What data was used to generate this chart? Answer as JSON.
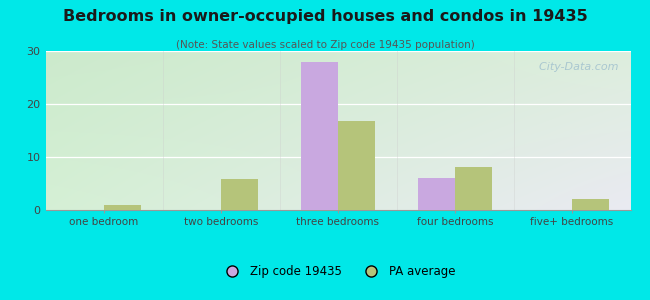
{
  "title": "Bedrooms in owner-occupied houses and condos in 19435",
  "subtitle": "(Note: State values scaled to Zip code 19435 population)",
  "categories": [
    "one bedroom",
    "two bedrooms",
    "three bedrooms",
    "four bedrooms",
    "five+ bedrooms"
  ],
  "zip_values": [
    0,
    0,
    28,
    6,
    0
  ],
  "pa_values": [
    1,
    5.8,
    16.8,
    8.2,
    2.0
  ],
  "zip_color": "#c9a8e0",
  "pa_color": "#b5c47a",
  "background_outer": "#00e8e8",
  "ylim": [
    0,
    30
  ],
  "yticks": [
    0,
    10,
    20,
    30
  ],
  "bar_width": 0.32,
  "legend_zip_label": "Zip code 19435",
  "legend_pa_label": "PA average",
  "watermark": "  City-Data.com"
}
